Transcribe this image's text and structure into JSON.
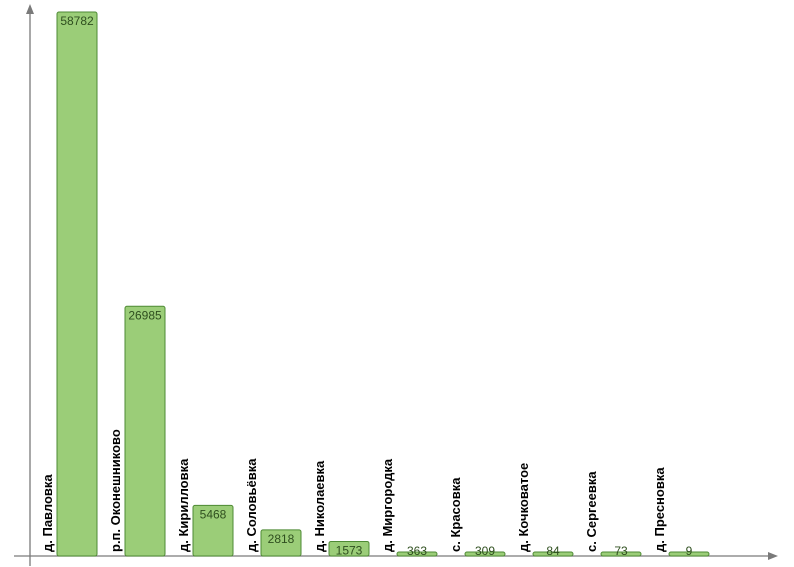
{
  "chart_data": {
    "type": "bar",
    "categories": [
      "д. Павловка",
      "р.п. Оконешниково",
      "д. Кирилловка",
      "д. Соловьёвка",
      "д. Николаевка",
      "д. Миргородка",
      "с. Красовка",
      "д. Кочковатое",
      "с. Сергеевка",
      "д. Пресновка"
    ],
    "values": [
      58782,
      26985,
      5468,
      2818,
      1573,
      363,
      309,
      84,
      73,
      9
    ],
    "value_labels": [
      "58782",
      "26985",
      "5468",
      "2818",
      "1573",
      "363",
      "309",
      "84",
      "73",
      "9"
    ],
    "title": "",
    "xlabel": "",
    "ylabel": "",
    "grid": false,
    "legend": "none",
    "colors": {
      "bar_fill": "#9bcd78",
      "bar_stroke": "#4e8a34",
      "axis": "#7a7a7a"
    }
  }
}
